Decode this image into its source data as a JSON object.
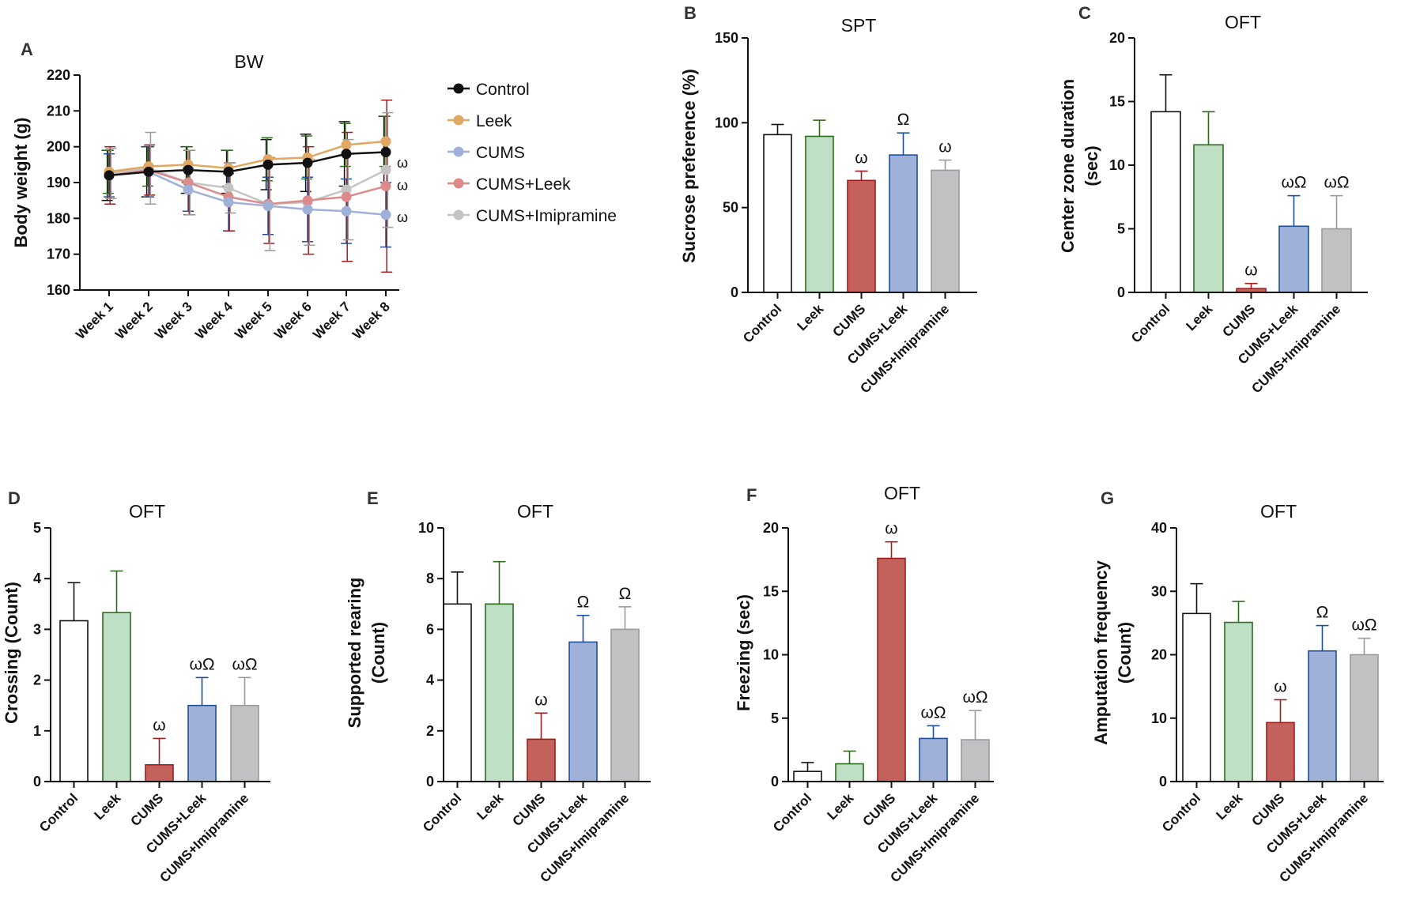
{
  "chart_data": [
    {
      "id": "A",
      "type": "line",
      "panel_label": "A",
      "title": "BW",
      "ylabel": "Body weight (g)",
      "ylim": [
        160,
        220
      ],
      "yticks": [
        160,
        170,
        180,
        190,
        200,
        210,
        220
      ],
      "categories": [
        "Week 1",
        "Week 2",
        "Week 3",
        "Week 4",
        "Week 5",
        "Week 6",
        "Week 7",
        "Week 8"
      ],
      "series": [
        {
          "name": "Control",
          "color": "#111111",
          "values": [
            192,
            193,
            193.5,
            193,
            195,
            195.5,
            198,
            198.5
          ],
          "errors": [
            7,
            7,
            6.5,
            6,
            7,
            8,
            9,
            10
          ],
          "err_color": "#111111"
        },
        {
          "name": "Leek",
          "color": "#e0a862",
          "values": [
            193,
            194.5,
            195,
            194,
            196.5,
            197,
            200.5,
            201.5
          ],
          "errors": [
            6,
            5.5,
            5,
            5,
            6,
            6,
            6,
            7
          ],
          "err_color": "#2e6b1e"
        },
        {
          "name": "CUMS",
          "color": "#9fb1d8",
          "values": [
            192,
            193,
            188,
            184.5,
            183.5,
            182.5,
            182,
            181
          ],
          "errors": [
            6,
            7,
            6,
            8,
            8,
            9,
            9,
            9
          ],
          "err_color": "#1f4f9a"
        },
        {
          "name": "CUMS+Leek",
          "color": "#dd8a8a",
          "values": [
            192,
            193.5,
            190,
            186,
            184,
            185,
            186,
            189
          ],
          "errors": [
            8,
            7,
            9,
            9.5,
            11,
            15,
            18,
            24
          ],
          "err_color": "#a11d1d"
        },
        {
          "name": "CUMS+Imipramine",
          "color": "#c4c4c4",
          "values": [
            192.5,
            194,
            190,
            188.5,
            184,
            184.5,
            188,
            193.5
          ],
          "errors": [
            7,
            10,
            9,
            7,
            13,
            12,
            14,
            16
          ],
          "err_color": "#9a9a9a"
        }
      ],
      "annotations": [
        {
          "series": "CUMS+Imipramine",
          "text": "ω"
        },
        {
          "series": "CUMS+Leek",
          "text": "ω"
        },
        {
          "series": "CUMS",
          "text": "ω"
        }
      ]
    },
    {
      "id": "B",
      "type": "bar",
      "panel_label": "B",
      "title": "SPT",
      "ylabel": "Sucrose preference (%)",
      "ylim": [
        0,
        150
      ],
      "yticks": [
        0,
        50,
        100,
        150
      ],
      "categories": [
        "Control",
        "Leek",
        "CUMS",
        "CUMS+Leek",
        "CUMS+Imipramine"
      ],
      "values": [
        93,
        92,
        66,
        81,
        72
      ],
      "errors": [
        6,
        9.5,
        5.5,
        13,
        6
      ],
      "marks": [
        "",
        "",
        "ω",
        "Ω",
        "ω"
      ]
    },
    {
      "id": "C",
      "type": "bar",
      "panel_label": "C",
      "title": "OFT",
      "ylabel": "Center zone duration (sec)",
      "ylim": [
        0,
        20
      ],
      "yticks": [
        0,
        5,
        10,
        15,
        20
      ],
      "categories": [
        "Control",
        "Leek",
        "CUMS",
        "CUMS+Leek",
        "CUMS+Imipramine"
      ],
      "values": [
        14.2,
        11.6,
        0.3,
        5.2,
        5.0
      ],
      "errors": [
        2.9,
        2.6,
        0.4,
        2.4,
        2.6
      ],
      "marks": [
        "",
        "",
        "ω",
        "ωΩ",
        "ωΩ"
      ]
    },
    {
      "id": "D",
      "type": "bar",
      "panel_label": "D",
      "title": "OFT",
      "ylabel": "Crossing (Count)",
      "ylim": [
        0,
        5
      ],
      "yticks": [
        0,
        1,
        2,
        3,
        4,
        5
      ],
      "categories": [
        "Control",
        "Leek",
        "CUMS",
        "CUMS+Leek",
        "CUMS+Imipramine"
      ],
      "values": [
        3.17,
        3.33,
        0.33,
        1.5,
        1.5
      ],
      "errors": [
        0.75,
        0.82,
        0.52,
        0.55,
        0.55
      ],
      "marks": [
        "",
        "",
        "ω",
        "ωΩ",
        "ωΩ"
      ]
    },
    {
      "id": "E",
      "type": "bar",
      "panel_label": "E",
      "title": "OFT",
      "ylabel": "Supported rearing (Count)",
      "ylim": [
        0,
        10
      ],
      "yticks": [
        0,
        2,
        4,
        6,
        8,
        10
      ],
      "categories": [
        "Control",
        "Leek",
        "CUMS",
        "CUMS+Leek",
        "CUMS+Imipramine"
      ],
      "values": [
        7.0,
        7.0,
        1.67,
        5.5,
        6.0
      ],
      "errors": [
        1.26,
        1.67,
        1.03,
        1.05,
        0.89
      ],
      "marks": [
        "",
        "",
        "ω",
        "Ω",
        "Ω"
      ]
    },
    {
      "id": "F",
      "type": "bar",
      "panel_label": "F",
      "title": "OFT",
      "ylabel": "Freezing (sec)",
      "ylim": [
        0,
        20
      ],
      "yticks": [
        0,
        5,
        10,
        15,
        20
      ],
      "categories": [
        "Control",
        "Leek",
        "CUMS",
        "CUMS+Leek",
        "CUMS+Imipramine"
      ],
      "values": [
        0.8,
        1.4,
        17.6,
        3.4,
        3.3
      ],
      "errors": [
        0.7,
        1.0,
        1.3,
        1.0,
        2.3
      ],
      "marks": [
        "",
        "",
        "ω",
        "ωΩ",
        "ωΩ"
      ]
    },
    {
      "id": "G",
      "type": "bar",
      "panel_label": "G",
      "title": "OFT",
      "ylabel": "Amputation frequency (Count)",
      "ylim": [
        0,
        40
      ],
      "yticks": [
        0,
        10,
        20,
        30,
        40
      ],
      "categories": [
        "Control",
        "Leek",
        "CUMS",
        "CUMS+Leek",
        "CUMS+Imipramine"
      ],
      "values": [
        26.5,
        25.1,
        9.3,
        20.6,
        20.0
      ],
      "errors": [
        4.7,
        3.3,
        3.6,
        4.0,
        2.6
      ],
      "marks": [
        "",
        "",
        "ω",
        "Ω",
        "ωΩ"
      ]
    }
  ],
  "bar_styles": {
    "fills": [
      "#ffffff",
      "#bfe0c4",
      "#c2625a",
      "#9fb1d8",
      "#bfc1c3"
    ],
    "strokes": [
      "#111111",
      "#2e6b1e",
      "#a11d1d",
      "#1f4f9a",
      "#9a9a9a"
    ]
  }
}
